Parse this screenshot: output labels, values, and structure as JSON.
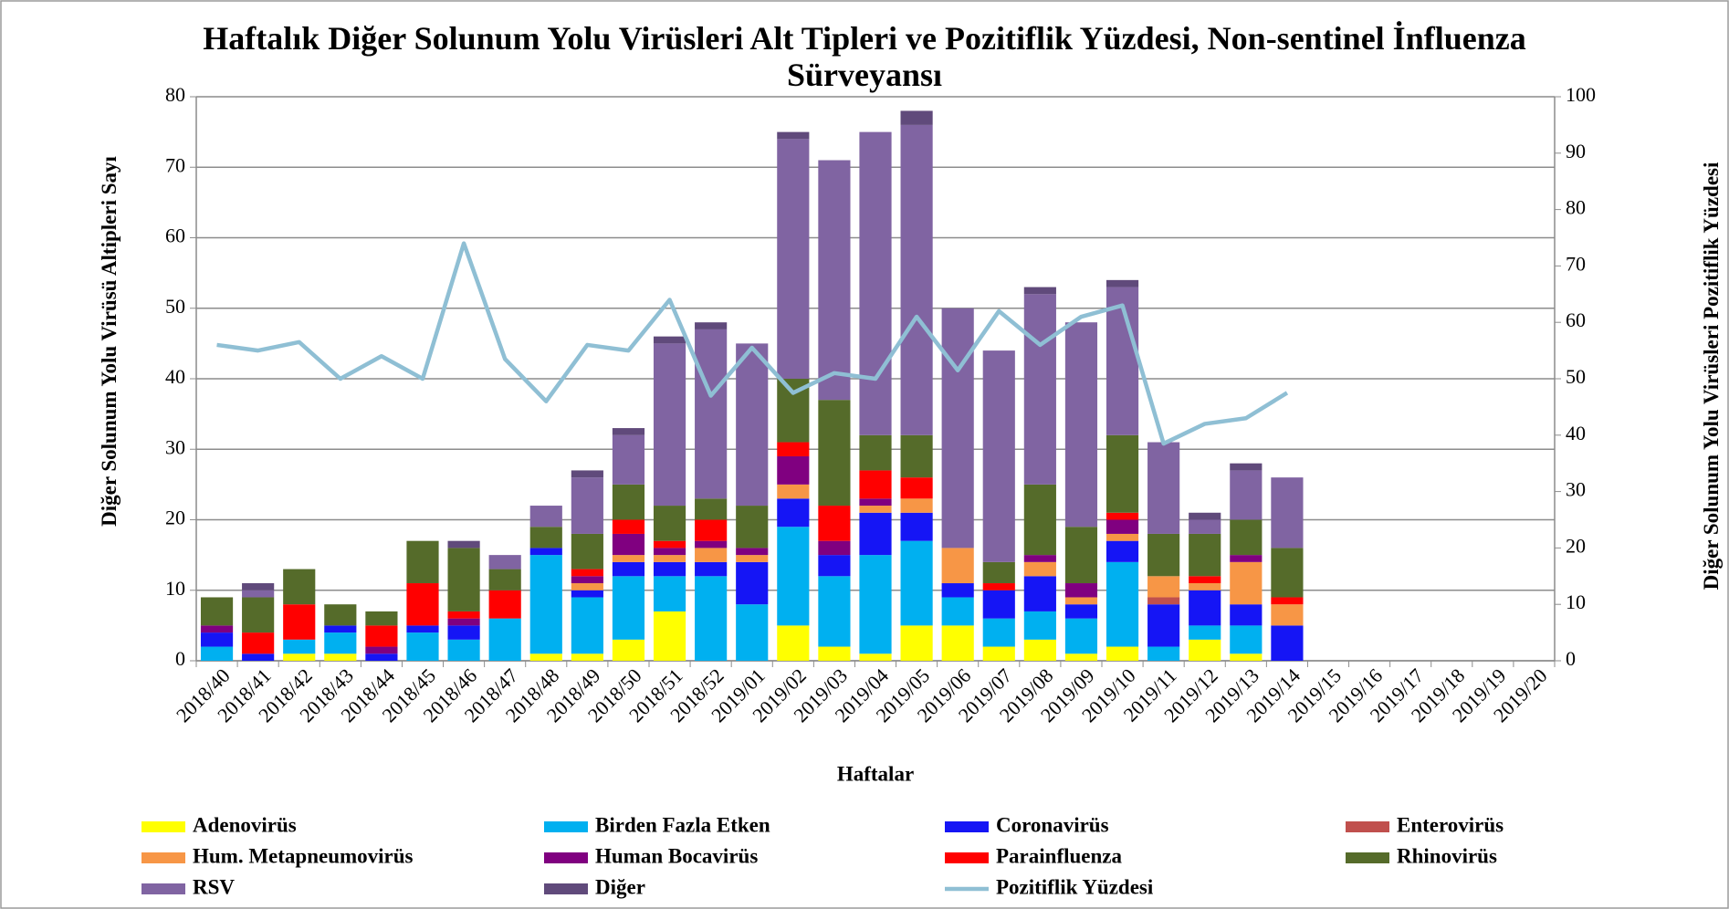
{
  "chart_data": {
    "type": "bar",
    "stacked": true,
    "title": "Haftalık Diğer Solunum Yolu Virüsleri Alt Tipleri ve Pozitiflik Yüzdesi, Non-sentinel İnfluenza Sürveyansı",
    "y_label": "Diğer Solunum Yolu Virüsü Altipleri Sayı",
    "y2_label": "Diğer Solunum Yolu Virüsleri Pozitiflik Yüzdesi",
    "x_label": "Haftalar",
    "categories": [
      "2018/40",
      "2018/41",
      "2018/42",
      "2018/43",
      "2018/44",
      "2018/45",
      "2018/46",
      "2018/47",
      "2018/48",
      "2018/49",
      "2018/50",
      "2018/51",
      "2018/52",
      "2019/01",
      "2019/02",
      "2019/03",
      "2019/04",
      "2019/05",
      "2019/06",
      "2019/07",
      "2019/08",
      "2019/09",
      "2019/10",
      "2019/11",
      "2019/12",
      "2019/13",
      "2019/14",
      "2019/15",
      "2019/16",
      "2019/17",
      "2019/18",
      "2019/19",
      "2019/20"
    ],
    "ylim": [
      0,
      80
    ],
    "yticks": [
      0,
      10,
      20,
      30,
      40,
      50,
      60,
      70,
      80
    ],
    "y2lim": [
      0,
      100
    ],
    "y2ticks": [
      0,
      10,
      20,
      30,
      40,
      50,
      60,
      70,
      80,
      90,
      100
    ],
    "grid": true,
    "series": [
      {
        "name": "Adenovirüs",
        "color": "#ffff00",
        "values": [
          0,
          0,
          1,
          1,
          0,
          0,
          0,
          0,
          1,
          1,
          3,
          7,
          0,
          0,
          5,
          2,
          1,
          5,
          5,
          2,
          3,
          1,
          2,
          0,
          3,
          1,
          0,
          null,
          null,
          null,
          null,
          null,
          null
        ]
      },
      {
        "name": "Birden Fazla Etken",
        "color": "#00b0f0",
        "values": [
          2,
          0,
          2,
          3,
          0,
          4,
          3,
          6,
          14,
          8,
          9,
          5,
          12,
          8,
          14,
          10,
          14,
          12,
          4,
          4,
          4,
          5,
          12,
          2,
          2,
          4,
          0,
          null,
          null,
          null,
          null,
          null,
          null
        ]
      },
      {
        "name": "Coronavirüs",
        "color": "#1515f5",
        "values": [
          2,
          1,
          0,
          1,
          1,
          1,
          2,
          0,
          1,
          1,
          2,
          2,
          2,
          6,
          4,
          3,
          6,
          4,
          2,
          4,
          5,
          2,
          3,
          6,
          5,
          3,
          5,
          null,
          null,
          null,
          null,
          null,
          null
        ]
      },
      {
        "name": "Enterovirüs",
        "color": "#c0504d",
        "values": [
          0,
          0,
          0,
          0,
          0,
          0,
          0,
          0,
          0,
          0,
          0,
          0,
          0,
          0,
          0,
          0,
          0,
          0,
          0,
          0,
          0,
          0,
          0,
          1,
          0,
          0,
          0,
          null,
          null,
          null,
          null,
          null,
          null
        ]
      },
      {
        "name": "Hum. Metapneumovirüs",
        "color": "#f79646",
        "values": [
          0,
          0,
          0,
          0,
          0,
          0,
          0,
          0,
          0,
          1,
          1,
          1,
          2,
          1,
          2,
          0,
          1,
          2,
          5,
          0,
          2,
          1,
          1,
          3,
          1,
          6,
          3,
          null,
          null,
          null,
          null,
          null,
          null
        ]
      },
      {
        "name": "Human Bocavirüs",
        "color": "#800080",
        "values": [
          1,
          0,
          0,
          0,
          1,
          0,
          1,
          0,
          0,
          1,
          3,
          1,
          1,
          1,
          4,
          2,
          1,
          0,
          0,
          0,
          1,
          2,
          2,
          0,
          0,
          1,
          0,
          null,
          null,
          null,
          null,
          null,
          null
        ]
      },
      {
        "name": "Parainfluenza",
        "color": "#ff0000",
        "values": [
          0,
          3,
          5,
          0,
          3,
          6,
          1,
          4,
          0,
          1,
          2,
          1,
          3,
          0,
          2,
          5,
          4,
          3,
          0,
          1,
          0,
          0,
          1,
          0,
          1,
          0,
          1,
          null,
          null,
          null,
          null,
          null,
          null
        ]
      },
      {
        "name": "Rhinovirüs",
        "color": "#556b2a",
        "values": [
          4,
          5,
          5,
          3,
          2,
          6,
          9,
          3,
          3,
          5,
          5,
          5,
          3,
          6,
          9,
          15,
          5,
          6,
          0,
          3,
          10,
          8,
          11,
          6,
          6,
          5,
          7,
          null,
          null,
          null,
          null,
          null,
          null
        ]
      },
      {
        "name": "RSV",
        "color": "#8064a2",
        "values": [
          0,
          1,
          0,
          0,
          0,
          0,
          0,
          2,
          3,
          8,
          7,
          23,
          24,
          23,
          34,
          34,
          43,
          44,
          34,
          30,
          27,
          29,
          21,
          13,
          2,
          7,
          10,
          null,
          null,
          null,
          null,
          null,
          null
        ]
      },
      {
        "name": "Diğer",
        "color": "#604a7b",
        "values": [
          0,
          1,
          0,
          0,
          0,
          0,
          1,
          0,
          0,
          1,
          1,
          1,
          1,
          0,
          1,
          0,
          0,
          2,
          0,
          0,
          1,
          0,
          1,
          0,
          1,
          1,
          0,
          null,
          null,
          null,
          null,
          null,
          null
        ]
      },
      {
        "name": "Pozitiflik Yüzdesi",
        "color": "#8fbfd4",
        "axis": "y2",
        "values": [
          56,
          55,
          56.5,
          50,
          54,
          50,
          74,
          53.5,
          46,
          56,
          55,
          64,
          47,
          55.5,
          47.5,
          51,
          50,
          61,
          51.5,
          62,
          56,
          61,
          63,
          38.5,
          42,
          43,
          47.5,
          null,
          null,
          null,
          null,
          null,
          null
        ]
      }
    ]
  }
}
